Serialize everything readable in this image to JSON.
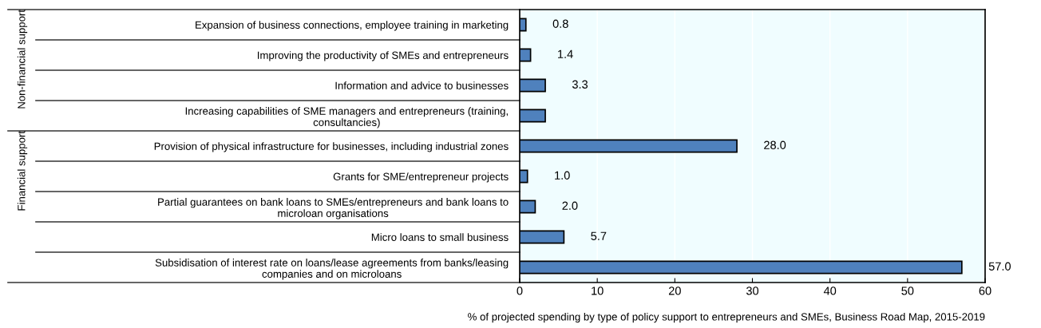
{
  "chart_data": {
    "type": "bar",
    "orientation": "horizontal",
    "xlabel": "% of projected spending by type of policy support to entrepreneurs and SMEs, Business Road Map, 2015-2019",
    "categories": [
      "Expansion of business connections, employee training in marketing",
      "Improving the productivity of SMEs and entrepreneurs",
      "Information and advice to businesses",
      "Increasing capabilities of SME managers and entrepreneurs (training,\nconsultancies)",
      "Provision of physical infrastructure for businesses, including industrial zones",
      "Grants for SME/entrepreneur projects",
      "Partial guarantees on bank loans to SMEs/entrepreneurs and bank loans to\nmicroloan organisations",
      "Micro loans to small business",
      "Subsidisation of interest rate on loans/lease agreements from banks/leasing\ncompanies and on microloans"
    ],
    "values": [
      0.8,
      1.4,
      3.3,
      3.3,
      28.0,
      1.0,
      2.0,
      5.7,
      57.0
    ],
    "value_labels": [
      "0.8",
      "1.4",
      "3.3",
      null,
      "28.0",
      "1.0",
      "2.0",
      "5.7",
      "57.0"
    ],
    "color": "#4f81bd",
    "xlim": [
      0,
      60
    ],
    "xticks": [
      0,
      10,
      20,
      30,
      40,
      50,
      60
    ],
    "grid": "x",
    "annotations": [
      "Non-financial support",
      "Financial support"
    ]
  }
}
